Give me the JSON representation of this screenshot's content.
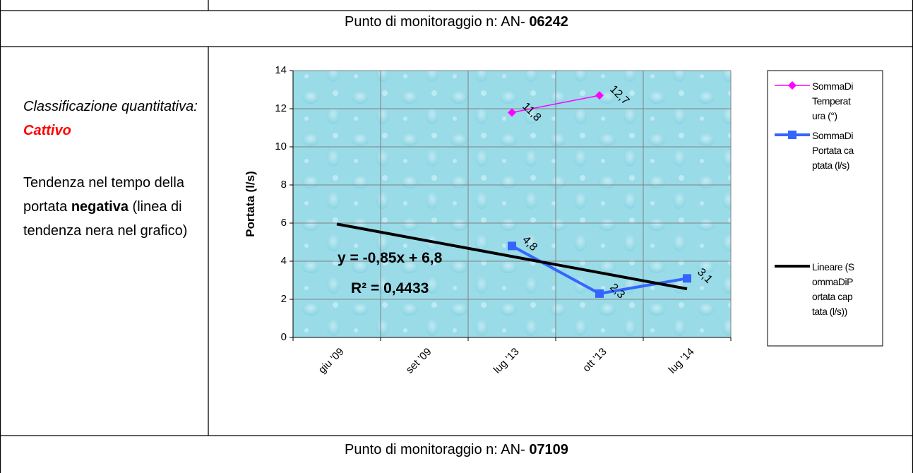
{
  "header": {
    "prefix": "Punto di monitoraggio n: AN-",
    "code": "06242"
  },
  "left_cell": {
    "classification_label": "Classificazione quantitativa:",
    "classification_value": "Cattivo",
    "trend_text_1": "Tendenza nel tempo della portata",
    "trend_text_bold": "negativa",
    "trend_text_2": "(linea di tendenza nera nel grafico)"
  },
  "footer": {
    "prefix": "Punto di monitoraggio n: AN-",
    "code": "07109"
  },
  "chart_data": {
    "type": "line",
    "y_label": "Portata (l/s)",
    "categories": [
      "giu '09",
      "set '09",
      "lug '13",
      "ott '13",
      "lug '14"
    ],
    "series": [
      {
        "name": "SommaDiTemperatura (°)",
        "color": "#ff00ff",
        "marker": "diamond",
        "values": [
          null,
          null,
          11.8,
          12.7,
          null
        ],
        "value_labels": [
          null,
          null,
          "11,8",
          "12,7",
          null
        ]
      },
      {
        "name": "SommaDiPortata captata (l/s)",
        "color": "#3366ff",
        "marker": "square",
        "values": [
          null,
          null,
          4.8,
          2.3,
          3.1
        ],
        "value_labels": [
          null,
          null,
          "4,8",
          "2,3",
          "3,1"
        ]
      },
      {
        "name": "Lineare (SommaDiPortata captata (l/s))",
        "color": "#000000",
        "values": [
          5.95,
          5.1,
          4.25,
          3.4,
          2.55
        ]
      }
    ],
    "annotations": [
      "y = -0,85x + 6,8",
      "R² = 0,4433"
    ],
    "ylim": [
      0,
      14
    ],
    "yticks": [
      0,
      2,
      4,
      6,
      8,
      10,
      12,
      14
    ],
    "grid": true
  }
}
